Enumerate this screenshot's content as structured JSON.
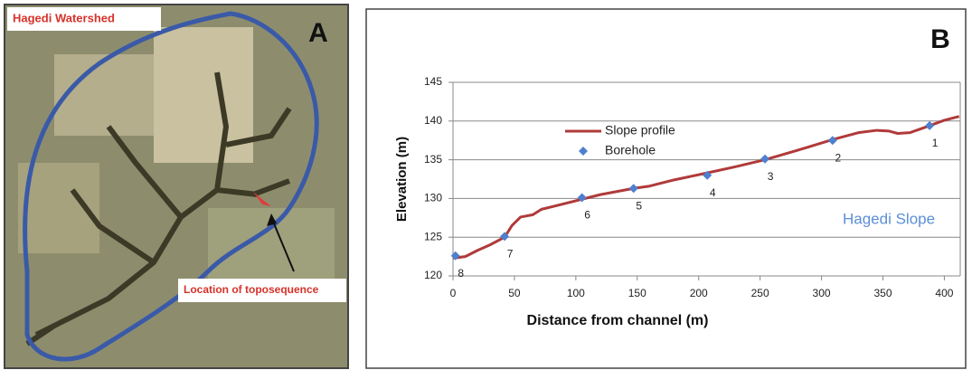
{
  "panel_a": {
    "label": "A",
    "title": "Hagedi Watershed",
    "annotation": "Location of toposequence"
  },
  "chart_data": {
    "type": "line",
    "panel_label": "B",
    "xlabel": "Distance from channel (m)",
    "ylabel": "Elevation (m)",
    "xlim": [
      0,
      410
    ],
    "ylim": [
      120,
      145
    ],
    "xticks": [
      0,
      50,
      100,
      150,
      200,
      250,
      300,
      350,
      400
    ],
    "yticks": [
      120,
      125,
      130,
      135,
      140,
      145
    ],
    "grid": true,
    "legend": "upper left",
    "annotation": "Hagedi Slope",
    "series": [
      {
        "name": "Slope profile",
        "type": "line",
        "color": "#b03a3a",
        "x": [
          0,
          10,
          20,
          30,
          42,
          48,
          55,
          65,
          72,
          85,
          100,
          120,
          147,
          160,
          180,
          207,
          230,
          254,
          280,
          309,
          330,
          345,
          355,
          362,
          372,
          388,
          400,
          412
        ],
        "values": [
          122.3,
          122.5,
          123.3,
          124,
          125,
          126.5,
          127.6,
          127.9,
          128.6,
          129.1,
          129.7,
          130.5,
          131.3,
          131.6,
          132.4,
          133.3,
          134.1,
          135,
          136.2,
          137.6,
          138.5,
          138.8,
          138.7,
          138.4,
          138.5,
          139.4,
          140.1,
          140.6
        ]
      },
      {
        "name": "Borehole",
        "type": "scatter",
        "color": "#4f7fcf",
        "x": [
          2,
          42,
          105,
          147,
          207,
          254,
          309,
          388
        ],
        "values": [
          122.6,
          125.1,
          130.1,
          131.3,
          133,
          135.1,
          137.5,
          139.4
        ],
        "labels": [
          "8",
          "7",
          "6",
          "5",
          "4",
          "3",
          "2",
          "1"
        ]
      }
    ]
  }
}
